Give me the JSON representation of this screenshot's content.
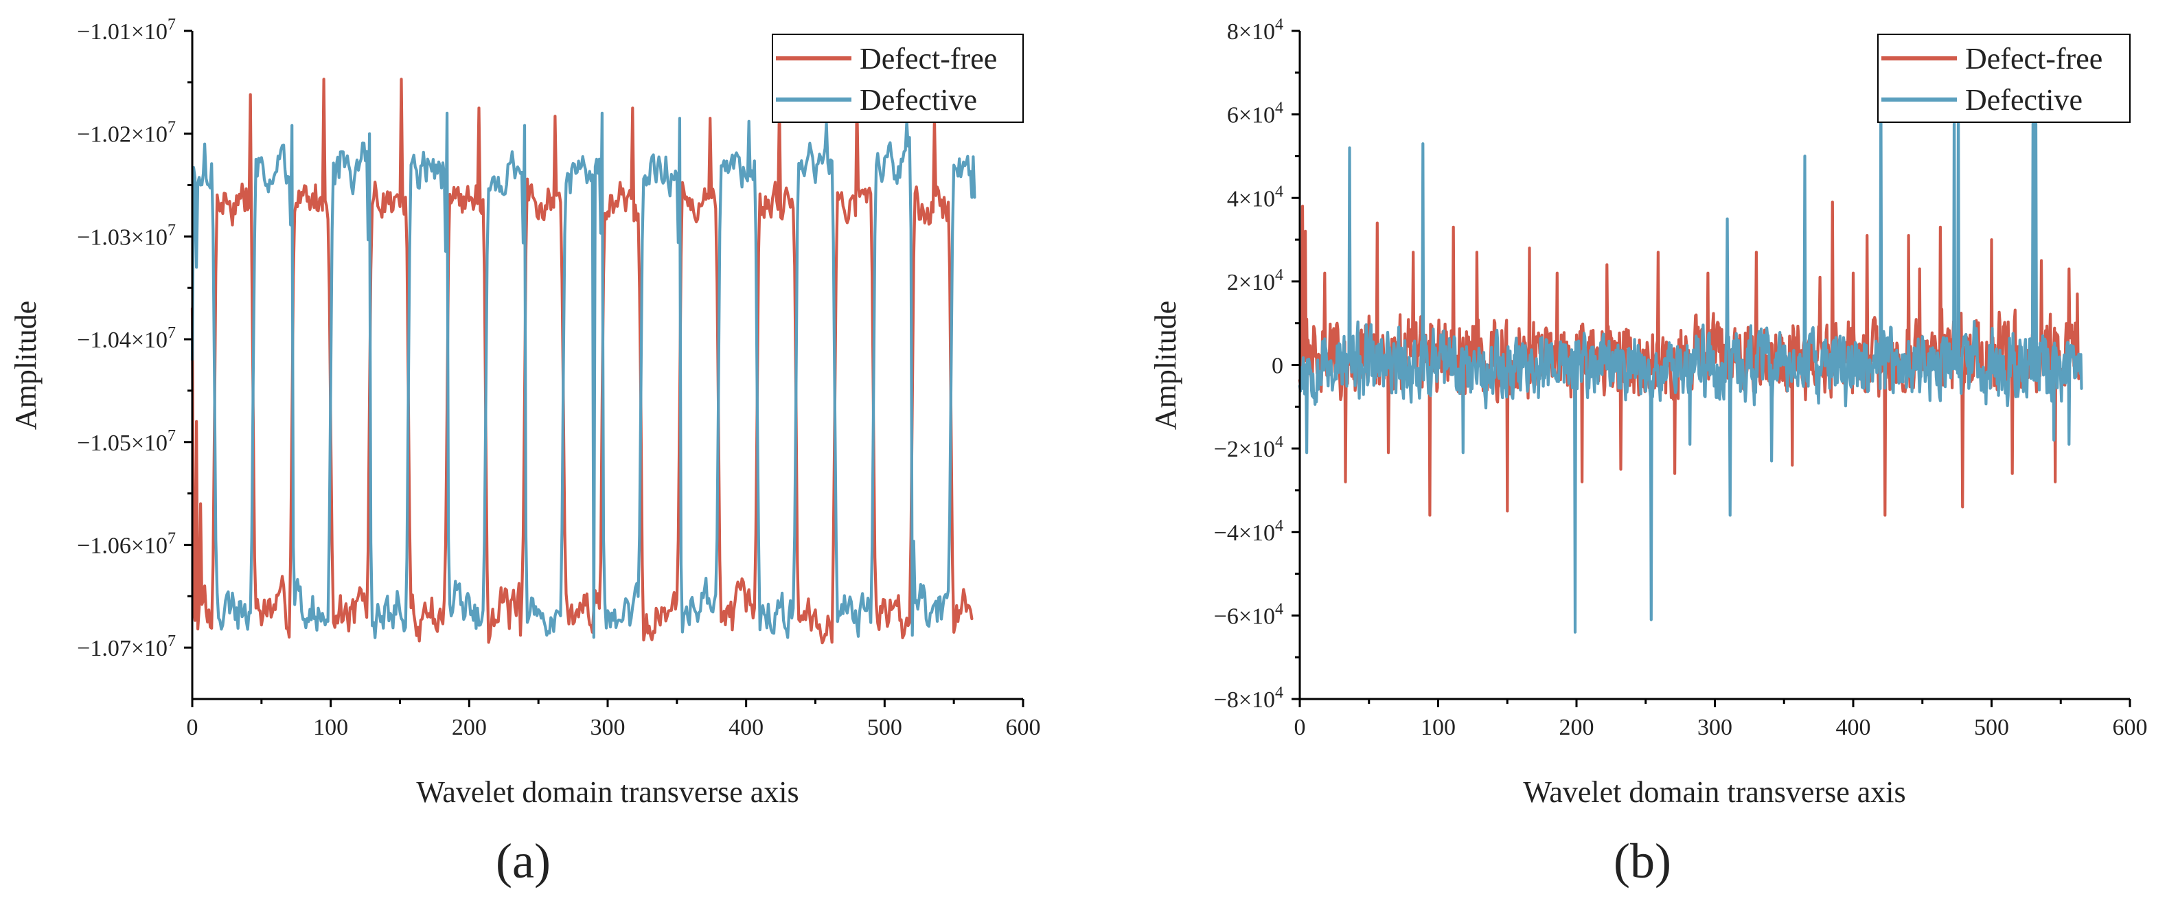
{
  "colors": {
    "defect_free": "#D15A4A",
    "defective": "#5A9FBE",
    "axis": "#000000",
    "text": "#222222"
  },
  "chart_data": [
    {
      "type": "line",
      "panel_label": "(a)",
      "title": "",
      "xlabel": "Wavelet domain transverse axis",
      "ylabel": "Amplitude",
      "xlim": [
        0,
        600
      ],
      "ylim": [
        -10750000,
        -10100000
      ],
      "x_ticks": [
        0,
        100,
        200,
        300,
        400,
        500,
        600
      ],
      "x_tick_labels": [
        "0",
        "100",
        "200",
        "300",
        "400",
        "500",
        "600"
      ],
      "y_ticks": [
        -10700000,
        -10600000,
        -10500000,
        -10400000,
        -10300000,
        -10200000,
        -10100000
      ],
      "y_tick_labels": [
        {
          "mantissa": "−1.07×10",
          "exp": "7"
        },
        {
          "mantissa": "−1.06×10",
          "exp": "7"
        },
        {
          "mantissa": "−1.05×10",
          "exp": "7"
        },
        {
          "mantissa": "−1.04×10",
          "exp": "7"
        },
        {
          "mantissa": "−1.03×10",
          "exp": "7"
        },
        {
          "mantissa": "−1.02×10",
          "exp": "7"
        },
        {
          "mantissa": "−1.01×10",
          "exp": "7"
        }
      ],
      "legend_position": "top-right",
      "series": [
        {
          "name": "Defect-free",
          "color": "#D15A4A",
          "generator": "periodic",
          "x_range": [
            0,
            563
          ],
          "period": 56,
          "phase_x": 14,
          "duty": 0.5,
          "edge": 4,
          "high": -10265000,
          "low": -10665000,
          "noise": 16000,
          "seed": 7,
          "spikes": [
            {
              "x": 42,
              "y": -10162000
            },
            {
              "x": 95,
              "y": -10147000
            },
            {
              "x": 151,
              "y": -10147000
            },
            {
              "x": 207,
              "y": -10175000
            },
            {
              "x": 262,
              "y": -10183000
            },
            {
              "x": 318,
              "y": -10175000
            },
            {
              "x": 374,
              "y": -10185000
            },
            {
              "x": 424,
              "y": -10170000
            },
            {
              "x": 480,
              "y": -10165000
            },
            {
              "x": 536,
              "y": -10185000
            },
            {
              "x": 237,
              "y": -10688000
            },
            {
              "x": 13,
              "y": -10680000
            }
          ],
          "points": [
            {
              "x": 0,
              "y": -10370000
            },
            {
              "x": 3,
              "y": -10480000
            },
            {
              "x": 6,
              "y": -10560000
            },
            {
              "x": 9,
              "y": -10640000
            },
            {
              "x": 563,
              "y": -10672000
            }
          ]
        },
        {
          "name": "Defective",
          "color": "#5A9FBE",
          "generator": "periodic",
          "x_range": [
            0,
            565
          ],
          "period": 56,
          "phase_x": 42,
          "duty": 0.5,
          "edge": 4,
          "high": -10235000,
          "low": -10665000,
          "noise": 16000,
          "seed": 19,
          "spikes": [
            {
              "x": 9,
              "y": -10210000
            },
            {
              "x": 72,
              "y": -10192000
            },
            {
              "x": 128,
              "y": -10200000
            },
            {
              "x": 184,
              "y": -10180000
            },
            {
              "x": 240,
              "y": -10192000
            },
            {
              "x": 296,
              "y": -10180000
            },
            {
              "x": 352,
              "y": -10185000
            },
            {
              "x": 402,
              "y": -10188000
            },
            {
              "x": 458,
              "y": -10190000
            },
            {
              "x": 516,
              "y": -10188000
            },
            {
              "x": 290,
              "y": -10690000
            },
            {
              "x": 520,
              "y": -10688000
            }
          ],
          "points": [
            {
              "x": 0,
              "y": -10420000
            },
            {
              "x": 3,
              "y": -10330000
            },
            {
              "x": 6,
              "y": -10250000
            },
            {
              "x": 561,
              "y": -10240000
            },
            {
              "x": 563,
              "y": -10262000
            },
            {
              "x": 565,
              "y": -10262000
            }
          ]
        }
      ]
    },
    {
      "type": "line",
      "panel_label": "(b)",
      "title": "",
      "xlabel": "Wavelet domain transverse axis",
      "ylabel": "Amplitude",
      "xlim": [
        0,
        600
      ],
      "ylim": [
        -80000,
        80000
      ],
      "x_ticks": [
        0,
        100,
        200,
        300,
        400,
        500,
        600
      ],
      "x_tick_labels": [
        "0",
        "100",
        "200",
        "300",
        "400",
        "500",
        "600"
      ],
      "y_ticks": [
        -80000,
        -60000,
        -40000,
        -20000,
        0,
        20000,
        40000,
        60000,
        80000
      ],
      "y_tick_labels": [
        {
          "mantissa": "−8×10",
          "exp": "4"
        },
        {
          "mantissa": "−6×10",
          "exp": "4"
        },
        {
          "mantissa": "−4×10",
          "exp": "4"
        },
        {
          "mantissa": "−2×10",
          "exp": "4"
        },
        {
          "mantissa": "0",
          "exp": ""
        },
        {
          "mantissa": "2×10",
          "exp": "4"
        },
        {
          "mantissa": "4×10",
          "exp": "4"
        },
        {
          "mantissa": "6×10",
          "exp": "4"
        },
        {
          "mantissa": "8×10",
          "exp": "4"
        }
      ],
      "legend_position": "top-right",
      "series": [
        {
          "name": "Defect-free",
          "color": "#D15A4A",
          "generator": "noise",
          "x_range": [
            0,
            563
          ],
          "amp": 11000,
          "bias": 2000,
          "seed": 31,
          "spikes": [
            {
              "x": 2,
              "y": 38000
            },
            {
              "x": 4,
              "y": 32000
            },
            {
              "x": 18,
              "y": 22000
            },
            {
              "x": 33,
              "y": -28000
            },
            {
              "x": 56,
              "y": 34000
            },
            {
              "x": 64,
              "y": -21000
            },
            {
              "x": 82,
              "y": 27000
            },
            {
              "x": 94,
              "y": -36000
            },
            {
              "x": 111,
              "y": 33000
            },
            {
              "x": 128,
              "y": 27000
            },
            {
              "x": 150,
              "y": -35000
            },
            {
              "x": 166,
              "y": 28000
            },
            {
              "x": 186,
              "y": 22000
            },
            {
              "x": 204,
              "y": -28000
            },
            {
              "x": 222,
              "y": 24000
            },
            {
              "x": 232,
              "y": -25000
            },
            {
              "x": 259,
              "y": 27000
            },
            {
              "x": 271,
              "y": -26000
            },
            {
              "x": 295,
              "y": 22000
            },
            {
              "x": 330,
              "y": 27000
            },
            {
              "x": 356,
              "y": -24000
            },
            {
              "x": 376,
              "y": 21000
            },
            {
              "x": 385,
              "y": 39000
            },
            {
              "x": 400,
              "y": 22000
            },
            {
              "x": 410,
              "y": 31000
            },
            {
              "x": 423,
              "y": -36000
            },
            {
              "x": 440,
              "y": 31000
            },
            {
              "x": 448,
              "y": 23000
            },
            {
              "x": 463,
              "y": 33000
            },
            {
              "x": 479,
              "y": -34000
            },
            {
              "x": 500,
              "y": 30000
            },
            {
              "x": 515,
              "y": -26000
            },
            {
              "x": 536,
              "y": 25000
            },
            {
              "x": 546,
              "y": -28000
            },
            {
              "x": 556,
              "y": 23000
            },
            {
              "x": 562,
              "y": 17000
            }
          ],
          "points": []
        },
        {
          "name": "Defective",
          "color": "#5A9FBE",
          "generator": "noise",
          "x_range": [
            0,
            565
          ],
          "amp": 10000,
          "bias": 0,
          "seed": 53,
          "spikes": [
            {
              "x": 5,
              "y": -21000
            },
            {
              "x": 36,
              "y": 52000
            },
            {
              "x": 89,
              "y": 53000
            },
            {
              "x": 118,
              "y": -21000
            },
            {
              "x": 199,
              "y": -64000
            },
            {
              "x": 254,
              "y": -61000
            },
            {
              "x": 282,
              "y": -19000
            },
            {
              "x": 309,
              "y": 35000
            },
            {
              "x": 311,
              "y": -36000
            },
            {
              "x": 341,
              "y": -23000
            },
            {
              "x": 365,
              "y": 50000
            },
            {
              "x": 420,
              "y": 69000
            },
            {
              "x": 473,
              "y": 65000
            },
            {
              "x": 476,
              "y": 64000
            },
            {
              "x": 530,
              "y": 62000
            },
            {
              "x": 532,
              "y": 60000
            },
            {
              "x": 545,
              "y": -18000
            },
            {
              "x": 556,
              "y": -19000
            }
          ],
          "points": []
        }
      ]
    }
  ]
}
